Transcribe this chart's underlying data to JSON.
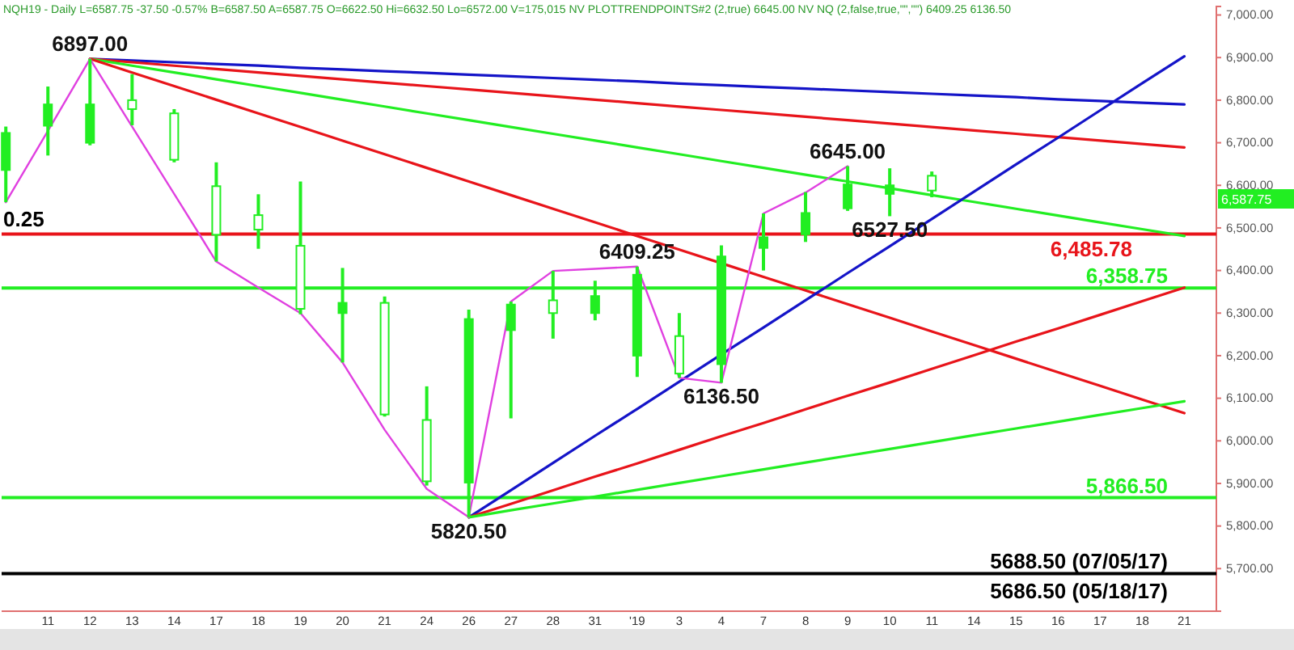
{
  "chart_data": {
    "type": "candlestick",
    "subtitle": "NQH19 - Daily  L=6587.75 -37.50 -0.57% B=6587.50 A=6587.75 O=6622.50 Hi=6632.50 Lo=6572.00 V=175,015 NV PLOTTRENDPOINTS#2 (2,true) 6645.00 NV NQ (2,false,true,\"\",\"\") 6409.25 6136.50",
    "categories": [
      null,
      "11",
      "12",
      "13",
      "14",
      "17",
      "18",
      "19",
      "20",
      "21",
      "24",
      "26",
      "27",
      "28",
      "31",
      "'19",
      "3",
      "4",
      "7",
      "8",
      "9",
      "10",
      "11",
      "14",
      "15",
      "16",
      "17",
      "18",
      "21"
    ],
    "color": "#22ee22",
    "ohlc": [
      [
        6636,
        6738,
        6560.25,
        6723
      ],
      [
        6740,
        6832,
        6670,
        6790
      ],
      [
        6700,
        6897,
        6694,
        6790
      ],
      [
        6800,
        6861,
        6741,
        6779
      ],
      [
        6769,
        6779,
        6654,
        6660
      ],
      [
        6598,
        6654,
        6421,
        6484
      ],
      [
        6530,
        6579,
        6451,
        6496
      ],
      [
        6458,
        6609,
        6297,
        6310
      ],
      [
        6300,
        6406,
        6184,
        6324
      ],
      [
        6324,
        6339,
        6057,
        6062
      ],
      [
        6049,
        6128,
        5895,
        5905
      ],
      [
        5902,
        6308,
        5820.5,
        6286
      ],
      [
        6260,
        6327,
        6053,
        6320
      ],
      [
        6330,
        6399,
        6240,
        6300
      ],
      [
        6300,
        6376,
        6283,
        6340
      ],
      [
        6200,
        6409.25,
        6150,
        6390
      ],
      [
        6246,
        6300,
        6148,
        6158
      ],
      [
        6180,
        6459,
        6136.5,
        6433
      ],
      [
        6453,
        6534,
        6400,
        6478
      ],
      [
        6485,
        6584,
        6467,
        6535
      ],
      [
        6546,
        6645,
        6540,
        6602
      ],
      [
        6580,
        6640,
        6527.5,
        6600
      ],
      [
        6622.5,
        6632.5,
        6572,
        6587.75
      ],
      null,
      null,
      null,
      null,
      null,
      null
    ],
    "series": [
      {
        "type": "line",
        "color": "#1414c8",
        "values": [
          null,
          null,
          6897,
          6893,
          6889,
          6885,
          6881,
          6876,
          6872,
          6868,
          6864,
          6860,
          6856,
          6852,
          6848,
          6844,
          6839,
          6835,
          6831,
          6827,
          6823,
          6819,
          6815,
          6811,
          6807,
          6802,
          6798,
          6794,
          6790
        ]
      },
      {
        "type": "line",
        "color": "#e8141a",
        "values": [
          null,
          null,
          6897,
          6889,
          6881,
          6873,
          6865,
          6857,
          6849,
          6841,
          6833,
          6825,
          6817,
          6809,
          6801,
          6793,
          6785,
          6777,
          6769,
          6761,
          6753,
          6745,
          6737,
          6729,
          6721,
          6713,
          6705,
          6697,
          6689
        ]
      },
      {
        "type": "line",
        "color": "#22ee22",
        "values": [
          null,
          null,
          6897,
          6881,
          6865,
          6849,
          6833,
          6817,
          6801,
          6785,
          6769,
          6753,
          6737,
          6721,
          6705,
          6689,
          6673,
          6657,
          6641,
          6625,
          6609,
          6593,
          6577,
          6561,
          6545,
          6529,
          6513,
          6497,
          6481
        ]
      },
      {
        "type": "line",
        "color": "#e8141a",
        "values": [
          null,
          null,
          6897,
          6865,
          6833,
          6801,
          6769,
          6737,
          6705,
          6673,
          6641,
          6609,
          6577,
          6545,
          6513,
          6481,
          6449,
          6417,
          6385,
          6353,
          6321,
          6289,
          6257,
          6225,
          6193,
          6161,
          6129,
          6097,
          6065
        ]
      },
      {
        "type": "line",
        "color": "#1414c8",
        "values": [
          null,
          null,
          null,
          null,
          null,
          null,
          null,
          null,
          null,
          null,
          null,
          5820.5,
          5884,
          5948,
          6012,
          6075,
          6139,
          6203,
          6266,
          6330,
          6394,
          6457,
          6521,
          6585,
          6649,
          6712,
          6776,
          6840,
          6903
        ]
      },
      {
        "type": "line",
        "color": "#e8141a",
        "values": [
          null,
          null,
          null,
          null,
          null,
          null,
          null,
          null,
          null,
          null,
          null,
          5820.5,
          5852,
          5884,
          5916,
          5947,
          5979,
          6011,
          6042,
          6074,
          6106,
          6137,
          6169,
          6201,
          6233,
          6264,
          6296,
          6328,
          6360
        ]
      },
      {
        "type": "line",
        "color": "#22ee22",
        "values": [
          null,
          null,
          null,
          null,
          null,
          null,
          null,
          null,
          null,
          null,
          null,
          5820.5,
          5837,
          5853,
          5869,
          5885,
          5901,
          5917,
          5933,
          5949,
          5965,
          5981,
          5997,
          6013,
          6029,
          6045,
          6061,
          6077,
          6093
        ]
      },
      {
        "type": "line",
        "color": "#e040e0",
        "values": [
          6560.25,
          6728,
          6897,
          6738,
          6580,
          6421,
          6360,
          6300,
          6184,
          6026,
          5887,
          5820.5,
          6327,
          6399,
          6404,
          6409.25,
          6148,
          6136.5,
          6534,
          6583,
          6645,
          null,
          null,
          null,
          null,
          null,
          null,
          null,
          null
        ]
      }
    ],
    "ylim": [
      5600,
      7020
    ],
    "yticks": [
      {
        "value": 5700,
        "label": "5,700.00"
      },
      {
        "value": 5800,
        "label": "5,800.00"
      },
      {
        "value": 5900,
        "label": "5,900.00"
      },
      {
        "value": 6000,
        "label": "6,000.00"
      },
      {
        "value": 6100,
        "label": "6,100.00"
      },
      {
        "value": 6200,
        "label": "6,200.00"
      },
      {
        "value": 6300,
        "label": "6,300.00"
      },
      {
        "value": 6400,
        "label": "6,400.00"
      },
      {
        "value": 6500,
        "label": "6,500.00"
      },
      {
        "value": 6600,
        "label": "6,600.00"
      },
      {
        "value": 6700,
        "label": "6,700.00"
      },
      {
        "value": 6800,
        "label": "6,800.00"
      },
      {
        "value": 6900,
        "label": "6,900.00"
      },
      {
        "value": 7000,
        "label": "7,000.00"
      }
    ],
    "ref_lines": [
      {
        "axis": "y",
        "value": 6485.78,
        "label": "6,485.78",
        "color": "#e8141a"
      },
      {
        "axis": "y",
        "value": 6358.75,
        "label": "6,358.75",
        "color": "#22ee22"
      },
      {
        "axis": "y",
        "value": 5866.5,
        "label": "5,866.50",
        "color": "#22ee22"
      },
      {
        "axis": "y",
        "value": 5688.5,
        "label": "5688.50 (07/05/17)",
        "color": "#000000"
      }
    ],
    "annotations": [
      {
        "text": "6897.00",
        "x": "12",
        "y": 6897
      },
      "0.25",
      {
        "text": "5820.50",
        "x": "26",
        "y": 5820.5
      },
      {
        "text": "6409.25",
        "x": "'19",
        "y": 6409.25
      },
      {
        "text": "6136.50",
        "x": "4",
        "y": 6136.5
      },
      {
        "text": "6645.00",
        "x": "9",
        "y": 6645
      },
      {
        "text": "6527.50",
        "x": "10",
        "y": 6527.5
      },
      "6,587.75",
      "5686.50 (05/18/17)"
    ],
    "grid": false
  }
}
